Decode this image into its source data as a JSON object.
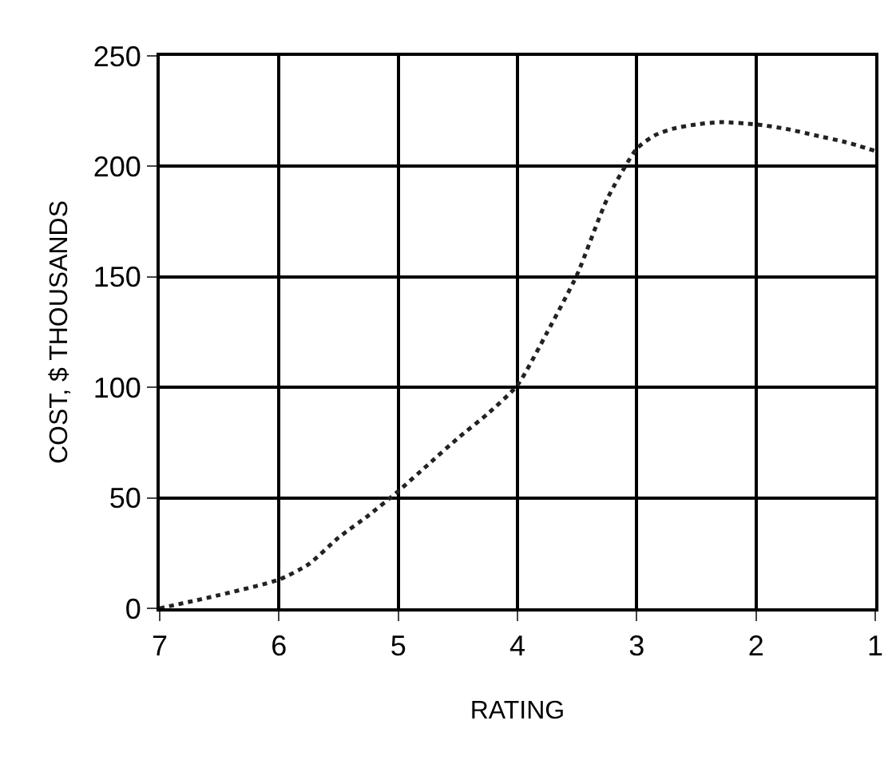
{
  "chart_data": {
    "type": "line",
    "xlabel": "RATING",
    "ylabel": "COST, $ THOUSANDS",
    "x": [
      7,
      6.5,
      6,
      5.75,
      5.5,
      5.25,
      5,
      4.75,
      4.5,
      4.25,
      4,
      3.75,
      3.5,
      3.25,
      3,
      2.85,
      2.7,
      2.5,
      2.3,
      2,
      1.75,
      1.5,
      1.25,
      1
    ],
    "series": [
      {
        "color": "#222222",
        "values": [
          0,
          6,
          13,
          20,
          32,
          42,
          53,
          65,
          77,
          88,
          101,
          125,
          151,
          185,
          208,
          214,
          217,
          219,
          220,
          219,
          217,
          214,
          211,
          207
        ]
      }
    ],
    "xlim": [
      7,
      1
    ],
    "xticks": [
      7,
      6,
      5,
      4,
      3,
      2,
      1
    ],
    "ylim": [
      0,
      250
    ],
    "yticks": [
      0,
      50,
      100,
      150,
      200,
      250
    ],
    "grid": true,
    "marker": "none",
    "line_style": "dotted"
  }
}
